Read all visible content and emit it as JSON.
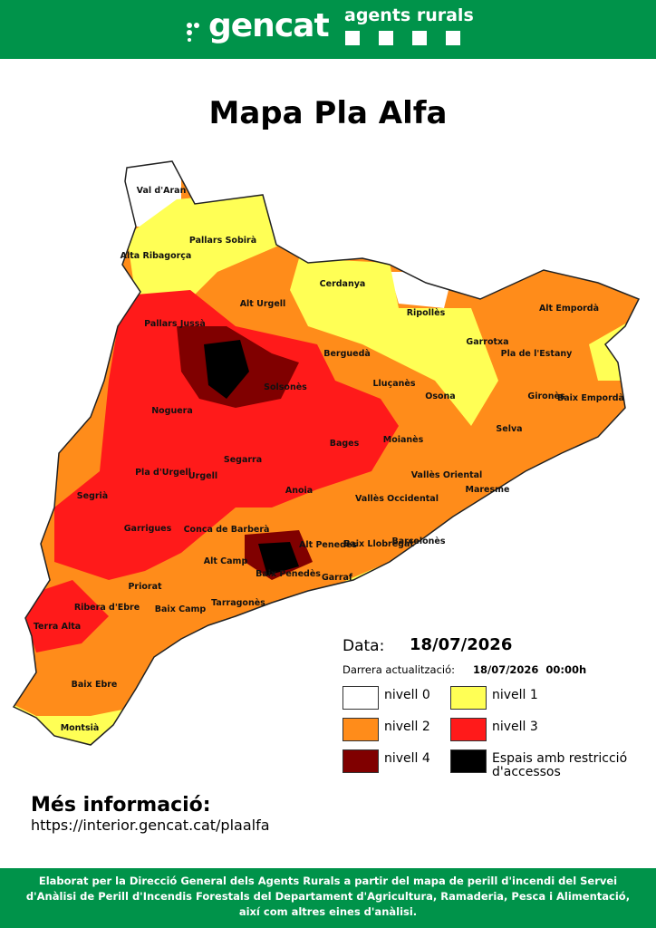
{
  "header": {
    "logo": "gencat",
    "subtitle": "agents rurals"
  },
  "title": "Mapa Pla Alfa",
  "regions": [
    "Val d'Aran",
    "Pallars Sobirà",
    "Alta Ribagorça",
    "Alt Urgell",
    "Cerdanya",
    "Ripollès",
    "Alt Empordà",
    "Pallars Jussà",
    "Garrotxa",
    "Pla de l'Estany",
    "Berguedà",
    "Solsonès",
    "Lluçanès",
    "Osona",
    "Gironès",
    "Baix Empordà",
    "Noguera",
    "Selva",
    "Bages",
    "Moianès",
    "Segarra",
    "Pla d'Urgell",
    "Urgell",
    "Vallès Oriental",
    "Segrià",
    "Anoia",
    "Vallès Occidental",
    "Maresme",
    "Garrigues",
    "Conca de Barberà",
    "Alt Penedès",
    "Baix Llobregat",
    "Barcelonès",
    "Alt Camp",
    "Baix Penedès",
    "Garraf",
    "Priorat",
    "Tarragonès",
    "Baix Camp",
    "Ribera d'Ebre",
    "Terra Alta",
    "Baix Ebre",
    "Montsià"
  ],
  "legend": {
    "date_label": "Data:",
    "date": "18/07/2026",
    "update_label": "Darrera actualització:",
    "update": "18/07/2026  00:00h",
    "items": [
      {
        "label": "nivell 0",
        "color": "#ffffff"
      },
      {
        "label": "nivell 1",
        "color": "#ffff55"
      },
      {
        "label": "nivell 2",
        "color": "#ff8c1a"
      },
      {
        "label": "nivell 3",
        "color": "#ff1a1a"
      },
      {
        "label": "nivell 4",
        "color": "#800000"
      },
      {
        "label": "Espais amb restricció d'accessos",
        "color": "#000000"
      }
    ]
  },
  "info": {
    "heading": "Més informació:",
    "url": "https://interior.gencat.cat/plaalfa"
  },
  "footer": "Elaborat per la Direcció General dels Agents Rurals a partir del mapa de perill d'incendi del Servei d'Anàlisi de Perill d'Incendis Forestals del Departament d'Agricultura, Ramaderia, Pesca i Alimentació, així com altres eines d'anàlisi."
}
